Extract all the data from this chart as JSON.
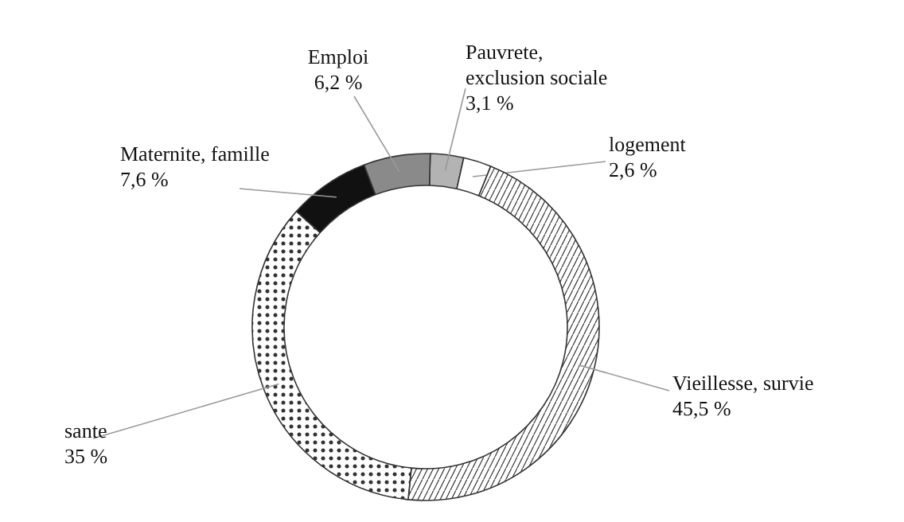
{
  "chart_data": {
    "type": "donut",
    "categories": [
      "Pauvrete,\nexclusion sociale",
      "logement",
      "Vieillesse, survie",
      "sante",
      "Maternite, famille",
      "Emploi"
    ],
    "values": [
      3.1,
      2.6,
      45.5,
      35,
      7.6,
      6.2
    ],
    "value_labels": [
      "3,1 %",
      "2,6 %",
      "45,5 %",
      "35 %",
      "7,6 %",
      "6,2 %"
    ],
    "colors": [
      "#b3b3b3",
      "#ffffff",
      "#ffffff",
      "#ffffff",
      "#111111",
      "#8a8a8a"
    ]
  }
}
